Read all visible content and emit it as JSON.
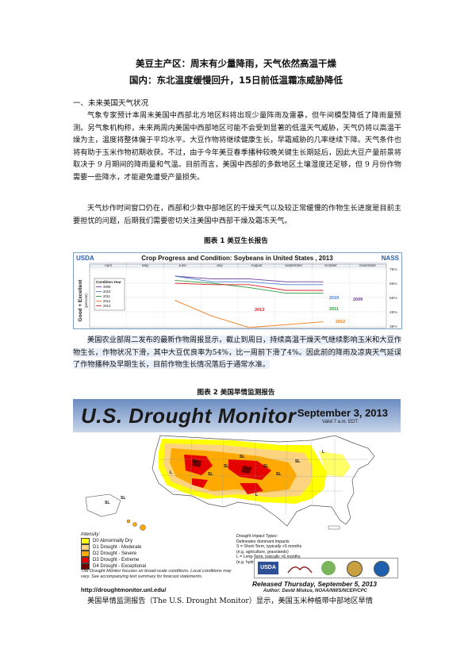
{
  "title1": "美豆主产区：周末有少量降雨，天气依然高温干燥",
  "title2": "国内：东北温度缓慢回升，15日前低温霜冻威胁降低",
  "section1": "一、未来美国天气状况",
  "para1": "气象专家预计本周末美国中西部北方地区料将出现少量阵雨及雷暴，但午间模型降低了降雨量预测。另气象机构称，未来两周内美国中西部地区可能不会受到显著的低温天气威胁，天气仍将以高温干燥为主，温度将整体偏于平均水平。大豆作物将继续健康生长，早霜威胁的几率继续下降。天气条件也将有助于玉米作物初期收获。不过，由于今年美豆春季播种较晚关键生长期延后，因此大豆产量前景将取决于 9 月期间的降雨量和气温。目前而言，美国中西部的多数地区土壤湿度还足够，但 9 月份作物需要一些降水，才能避免遭受产量损失。",
  "para2": "天气炒作时间窗口仍在，西部和少数中部地区的干燥天气以及较正常缓慢的作物生长进度是目前主要担忧的问题，后期我们需要密切关注美国中西部干燥及霜冻天气。",
  "fig1_caption": "图表 1 美豆生长报告",
  "chart1": {
    "left_label": "USDA",
    "title": "Crop Progress and Condition: Soybeans in United States , 2013",
    "right_label": "NASS",
    "months": [
      "April",
      "May",
      "June",
      "July",
      "August",
      "September",
      "October",
      "November"
    ],
    "ylabel": "Good + Excellent",
    "ylabel_unit": "(percent)",
    "legend_title": "Condition Year",
    "legend_items": [
      "2009",
      "2010",
      "2011",
      "2012",
      "2013"
    ],
    "y_ticks": [
      "75%",
      "65%",
      "55%",
      "45%",
      "35%"
    ],
    "series_labels": [
      "2010",
      "2009",
      "2013",
      "2011",
      "2012"
    ],
    "colors": {
      "2009": "#6a3d9a",
      "2010": "#4a7fd0",
      "2011": "#2e9b3e",
      "2012": "#f07d1a",
      "2013": "#d62728",
      "2013_dash": "#888888"
    }
  },
  "chart_data": {
    "type": "line",
    "title": "Crop Progress and Condition: Soybeans in United States , 2013",
    "ylabel": "Good + Excellent (percent)",
    "x": [
      "June",
      "July",
      "August",
      "September",
      "October"
    ],
    "ylim": [
      35,
      75
    ],
    "series": [
      {
        "name": "2009",
        "values": [
          70,
          68,
          68,
          66,
          66
        ]
      },
      {
        "name": "2010",
        "values": [
          70,
          66,
          66,
          64,
          64
        ]
      },
      {
        "name": "2011",
        "values": [
          67,
          65,
          62,
          58,
          58
        ]
      },
      {
        "name": "2012",
        "values": [
          53,
          42,
          34,
          36,
          38
        ]
      },
      {
        "name": "2013",
        "values": [
          65,
          64,
          64,
          60,
          60
        ]
      }
    ]
  },
  "para3": "美国农业部周二发布的最新作物周报显示，截止到周日，持续高温干燥天气继续影响玉米和大豆作物生长，作物状况下滑，其中大豆优良率为54%，比一周前下滑了4%。因此前的降雨及凉爽天气延误了作物播种及早期生长，目前作物生长情况落后于通常水准。",
  "fig2_caption": "图表 2 美国旱情监测报告",
  "drought_map": {
    "title": "U.S. Drought Monitor",
    "date": "September 3, 2013",
    "valid": "Valid 7 a.m. EDT",
    "intensity_title": "Intensity:",
    "intensity": [
      {
        "label": "D0 Abnormally Dry",
        "color": "#ffff00"
      },
      {
        "label": "D1 Drought - Moderate",
        "color": "#fcd37f"
      },
      {
        "label": "D2 Drought - Severe",
        "color": "#ffaa00"
      },
      {
        "label": "D3 Drought - Extreme",
        "color": "#e60000"
      },
      {
        "label": "D4 Drought - Exceptional",
        "color": "#730000"
      }
    ],
    "impact_title": "Drought Impact Types:",
    "impact_lines": [
      "Delineates dominant impacts",
      "S = Short-Term, typically <6 months",
      "(e.g. agriculture, grasslands)",
      "L = Long-Term, typically >6 months",
      "(e.g. hydrology, ecology)"
    ],
    "note": "The Drought Monitor focuses on broad-scale conditions. Local conditions may vary. See accompanying text summary for forecast statements.",
    "url": "http://droughtmonitor.unl.edu/",
    "released": "Released Thursday, September 5, 2013",
    "author": "Author: David Miskus, NOAA/NWS/NCEP/CPC",
    "logo_usda": "USDA",
    "map_labels": [
      "SL",
      "SL",
      "L",
      "SL",
      "SL",
      "SL",
      "SL",
      "SL",
      "SL",
      "SL",
      "L",
      "L"
    ]
  },
  "para4": "美国旱情监测报告（The U.S. Drought Monitor）显示，美国玉米种植带中部地区旱情"
}
